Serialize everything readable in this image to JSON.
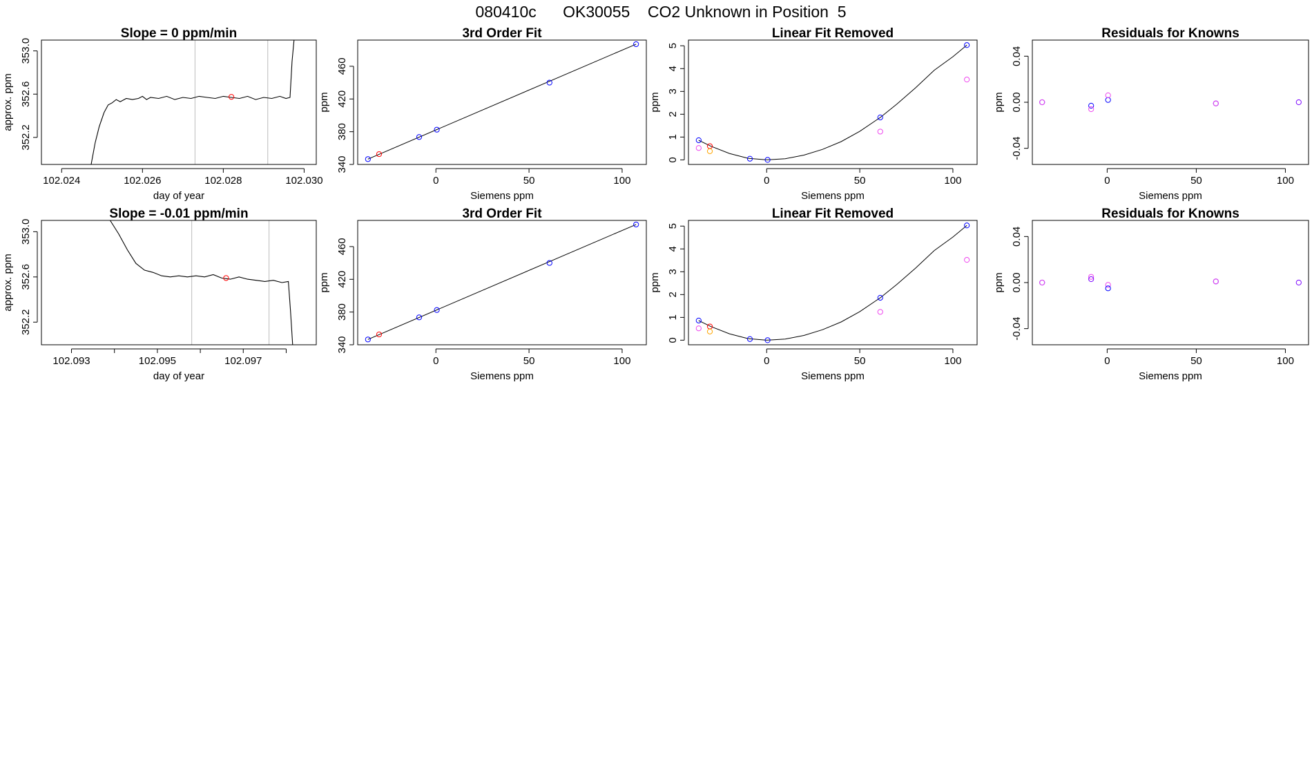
{
  "figure": {
    "suptitle": "080410c      OK30055    CO2 Unknown in Position  5"
  },
  "colors": {
    "frame": "#000000",
    "trace": "#000000",
    "known": "#0000ff",
    "unknown": "#ff0000",
    "magenta": "#ee44ee",
    "orange": "#ffa500",
    "purple": "#7a00ff",
    "vline": "#bbbbbb"
  },
  "chart_data": [
    {
      "id": "r1-timeseries",
      "type": "line",
      "title": "Slope =  0  ppm/min",
      "xlabel": "day of year",
      "ylabel": "approx. ppm",
      "xlim": [
        102.0235,
        102.0303
      ],
      "ylim": [
        351.95,
        353.1
      ],
      "xticks": [
        102.024,
        102.026,
        102.028,
        102.03
      ],
      "xtick_labels": [
        "102.024",
        "102.026",
        "102.028",
        "102.030"
      ],
      "yticks": [
        352.2,
        352.6,
        353.0
      ],
      "ytick_labels": [
        "352.2",
        "352.6",
        "353.0"
      ],
      "vlines": [
        102.0273,
        102.0291
      ],
      "series": [
        {
          "color": "trace",
          "x": [
            102.02473,
            102.02483,
            102.02493,
            102.02505,
            102.02515,
            102.02525,
            102.02535,
            102.02545,
            102.0256,
            102.02575,
            102.0259,
            102.026,
            102.0261,
            102.0262,
            102.0264,
            102.0266,
            102.0268,
            102.027,
            102.0272,
            102.0274,
            102.0276,
            102.0278,
            102.028,
            102.0282,
            102.0284,
            102.0286,
            102.0288,
            102.029,
            102.0292,
            102.0294,
            102.02955,
            102.02965,
            102.0297,
            102.02975
          ],
          "y": [
            351.95,
            352.15,
            352.3,
            352.43,
            352.5,
            352.52,
            352.55,
            352.53,
            352.56,
            352.55,
            352.56,
            352.58,
            352.55,
            352.57,
            352.56,
            352.58,
            352.55,
            352.57,
            352.56,
            352.58,
            352.57,
            352.56,
            352.58,
            352.57,
            352.56,
            352.58,
            352.55,
            352.57,
            352.56,
            352.58,
            352.56,
            352.57,
            352.9,
            353.1
          ]
        }
      ],
      "points": [
        {
          "x": 102.0282,
          "y": 352.575,
          "color": "unknown"
        }
      ]
    },
    {
      "id": "r1-fit",
      "type": "scatter",
      "title": "3rd Order Fit",
      "xlabel": "Siemens ppm",
      "ylabel": "ppm",
      "xlim": [
        -42,
        113
      ],
      "ylim": [
        340,
        492
      ],
      "xticks": [
        0,
        50,
        100
      ],
      "xtick_labels": [
        "0",
        "50",
        "100"
      ],
      "yticks": [
        340,
        380,
        420,
        460
      ],
      "ytick_labels": [
        "340",
        "380",
        "420",
        "460"
      ],
      "curve": {
        "x": [
          -36.5,
          107.5
        ],
        "y": [
          346.5,
          487.0
        ]
      },
      "points": [
        {
          "x": -36.5,
          "y": 346.5,
          "color": "known"
        },
        {
          "x": -30.5,
          "y": 352.6,
          "color": "unknown"
        },
        {
          "x": -9,
          "y": 373.5,
          "color": "known"
        },
        {
          "x": 0.5,
          "y": 382.5,
          "color": "known"
        },
        {
          "x": 61,
          "y": 440.0,
          "color": "known"
        },
        {
          "x": 107.5,
          "y": 487.0,
          "color": "known"
        }
      ]
    },
    {
      "id": "r1-linear-removed",
      "type": "scatter",
      "title": "Linear Fit Removed",
      "xlabel": "Siemens ppm",
      "ylabel": "ppm",
      "xlim": [
        -42,
        113
      ],
      "ylim": [
        -0.2,
        5.25
      ],
      "xticks": [
        0,
        50,
        100
      ],
      "xtick_labels": [
        "0",
        "50",
        "100"
      ],
      "yticks": [
        0,
        1,
        2,
        3,
        4,
        5
      ],
      "ytick_labels": [
        "0",
        "1",
        "2",
        "3",
        "4",
        "5"
      ],
      "curve": {
        "x": [
          -36.5,
          -30,
          -20,
          -10,
          0,
          10,
          20,
          30,
          40,
          50,
          61,
          70,
          80,
          90,
          100,
          107.5
        ],
        "y": [
          0.86,
          0.6,
          0.28,
          0.07,
          0.0,
          0.05,
          0.21,
          0.46,
          0.8,
          1.25,
          1.86,
          2.45,
          3.16,
          3.93,
          4.52,
          5.03
        ]
      },
      "points": [
        {
          "x": -36.5,
          "y": 0.86,
          "color": "known"
        },
        {
          "x": -36.5,
          "y": 0.52,
          "color": "magenta"
        },
        {
          "x": -30.5,
          "y": 0.6,
          "color": "unknown"
        },
        {
          "x": -30.5,
          "y": 0.38,
          "color": "orange"
        },
        {
          "x": -9,
          "y": 0.05,
          "color": "known"
        },
        {
          "x": 0.5,
          "y": 0.0,
          "color": "known"
        },
        {
          "x": 61,
          "y": 1.86,
          "color": "known"
        },
        {
          "x": 61,
          "y": 1.24,
          "color": "magenta"
        },
        {
          "x": 107.5,
          "y": 5.03,
          "color": "known"
        },
        {
          "x": 107.5,
          "y": 3.52,
          "color": "magenta"
        }
      ]
    },
    {
      "id": "r1-residuals",
      "type": "scatter",
      "title": "Residuals for Knowns",
      "xlabel": "Siemens ppm",
      "ylabel": "ppm",
      "xlim": [
        -42,
        113
      ],
      "ylim": [
        -0.054,
        0.054
      ],
      "xticks": [
        0,
        50,
        100
      ],
      "xtick_labels": [
        "0",
        "50",
        "100"
      ],
      "yticks": [
        -0.04,
        0.0,
        0.04
      ],
      "ytick_labels": [
        "-0.04",
        "0.00",
        "0.04"
      ],
      "points": [
        {
          "x": -36.5,
          "y": 0.0,
          "color": "known"
        },
        {
          "x": -36.5,
          "y": 0.0,
          "color": "magenta"
        },
        {
          "x": -9,
          "y": -0.003,
          "color": "known"
        },
        {
          "x": -9,
          "y": -0.006,
          "color": "magenta"
        },
        {
          "x": 0.5,
          "y": 0.002,
          "color": "known"
        },
        {
          "x": 0.5,
          "y": 0.006,
          "color": "magenta"
        },
        {
          "x": 61,
          "y": -0.001,
          "color": "known"
        },
        {
          "x": 61,
          "y": -0.001,
          "color": "magenta"
        },
        {
          "x": 107.5,
          "y": 0.0,
          "color": "purple"
        }
      ]
    },
    {
      "id": "r2-timeseries",
      "type": "line",
      "title": "Slope =  -0.01  ppm/min",
      "xlabel": "day of year",
      "ylabel": "approx. ppm",
      "xlim": [
        102.0923,
        102.0987
      ],
      "ylim": [
        352.0,
        353.1
      ],
      "xticks": [
        102.093,
        102.094,
        102.095,
        102.096,
        102.097,
        102.098
      ],
      "xtick_labels": [
        "102.093",
        "",
        "102.095",
        "",
        "102.097",
        ""
      ],
      "yticks": [
        352.2,
        352.6,
        353.0
      ],
      "ytick_labels": [
        "352.2",
        "352.6",
        "353.0"
      ],
      "vlines": [
        102.0958,
        102.0976
      ],
      "series": [
        {
          "color": "trace",
          "x": [
            102.0939,
            102.0941,
            102.0943,
            102.0945,
            102.0947,
            102.0949,
            102.0951,
            102.0953,
            102.0955,
            102.0957,
            102.0959,
            102.0961,
            102.0963,
            102.0965,
            102.0967,
            102.0969,
            102.0971,
            102.0973,
            102.0975,
            102.0977,
            102.0979,
            102.09805,
            102.0981,
            102.09815
          ],
          "y": [
            353.1,
            352.98,
            352.84,
            352.72,
            352.66,
            352.64,
            352.61,
            352.6,
            352.61,
            352.6,
            352.61,
            352.6,
            352.62,
            352.59,
            352.58,
            352.6,
            352.58,
            352.57,
            352.56,
            352.57,
            352.55,
            352.56,
            352.3,
            352.0
          ]
        }
      ],
      "points": [
        {
          "x": 102.0966,
          "y": 352.59,
          "color": "unknown"
        }
      ]
    },
    {
      "id": "r2-fit",
      "type": "scatter",
      "title": "3rd Order Fit",
      "xlabel": "Siemens ppm",
      "ylabel": "ppm",
      "xlim": [
        -42,
        113
      ],
      "ylim": [
        340,
        492
      ],
      "xticks": [
        0,
        50,
        100
      ],
      "xtick_labels": [
        "0",
        "50",
        "100"
      ],
      "yticks": [
        340,
        380,
        420,
        460
      ],
      "ytick_labels": [
        "340",
        "380",
        "420",
        "460"
      ],
      "curve": {
        "x": [
          -36.5,
          107.5
        ],
        "y": [
          346.5,
          487.0
        ]
      },
      "points": [
        {
          "x": -36.5,
          "y": 346.5,
          "color": "known"
        },
        {
          "x": -30.5,
          "y": 352.6,
          "color": "unknown"
        },
        {
          "x": -9,
          "y": 373.5,
          "color": "known"
        },
        {
          "x": 0.5,
          "y": 382.5,
          "color": "known"
        },
        {
          "x": 61,
          "y": 440.0,
          "color": "known"
        },
        {
          "x": 107.5,
          "y": 487.0,
          "color": "known"
        }
      ]
    },
    {
      "id": "r2-linear-removed",
      "type": "scatter",
      "title": "Linear Fit Removed",
      "xlabel": "Siemens ppm",
      "ylabel": "ppm",
      "xlim": [
        -42,
        113
      ],
      "ylim": [
        -0.2,
        5.25
      ],
      "xticks": [
        0,
        50,
        100
      ],
      "xtick_labels": [
        "0",
        "50",
        "100"
      ],
      "yticks": [
        0,
        1,
        2,
        3,
        4,
        5
      ],
      "ytick_labels": [
        "0",
        "1",
        "2",
        "3",
        "4",
        "5"
      ],
      "curve": {
        "x": [
          -36.5,
          -30,
          -20,
          -10,
          0,
          10,
          20,
          30,
          40,
          50,
          61,
          70,
          80,
          90,
          100,
          107.5
        ],
        "y": [
          0.86,
          0.6,
          0.28,
          0.07,
          0.0,
          0.05,
          0.21,
          0.46,
          0.8,
          1.25,
          1.86,
          2.45,
          3.16,
          3.93,
          4.52,
          5.03
        ]
      },
      "points": [
        {
          "x": -36.5,
          "y": 0.86,
          "color": "known"
        },
        {
          "x": -36.5,
          "y": 0.52,
          "color": "magenta"
        },
        {
          "x": -30.5,
          "y": 0.6,
          "color": "unknown"
        },
        {
          "x": -30.5,
          "y": 0.38,
          "color": "orange"
        },
        {
          "x": -9,
          "y": 0.05,
          "color": "known"
        },
        {
          "x": 0.5,
          "y": 0.0,
          "color": "known"
        },
        {
          "x": 61,
          "y": 1.86,
          "color": "known"
        },
        {
          "x": 61,
          "y": 1.24,
          "color": "magenta"
        },
        {
          "x": 107.5,
          "y": 5.03,
          "color": "known"
        },
        {
          "x": 107.5,
          "y": 3.52,
          "color": "magenta"
        }
      ]
    },
    {
      "id": "r2-residuals",
      "type": "scatter",
      "title": "Residuals for Knowns",
      "xlabel": "Siemens ppm",
      "ylabel": "ppm",
      "xlim": [
        -42,
        113
      ],
      "ylim": [
        -0.054,
        0.054
      ],
      "xticks": [
        0,
        50,
        100
      ],
      "xtick_labels": [
        "0",
        "50",
        "100"
      ],
      "yticks": [
        -0.04,
        0.0,
        0.04
      ],
      "ytick_labels": [
        "-0.04",
        "0.00",
        "0.04"
      ],
      "points": [
        {
          "x": -36.5,
          "y": 0.0,
          "color": "known"
        },
        {
          "x": -36.5,
          "y": 0.0,
          "color": "magenta"
        },
        {
          "x": -9,
          "y": 0.005,
          "color": "magenta"
        },
        {
          "x": -9,
          "y": 0.003,
          "color": "purple"
        },
        {
          "x": 0.5,
          "y": -0.002,
          "color": "magenta"
        },
        {
          "x": 0.5,
          "y": -0.005,
          "color": "known"
        },
        {
          "x": 61,
          "y": 0.001,
          "color": "known"
        },
        {
          "x": 61,
          "y": 0.001,
          "color": "magenta"
        },
        {
          "x": 107.5,
          "y": 0.0,
          "color": "purple"
        }
      ]
    }
  ]
}
